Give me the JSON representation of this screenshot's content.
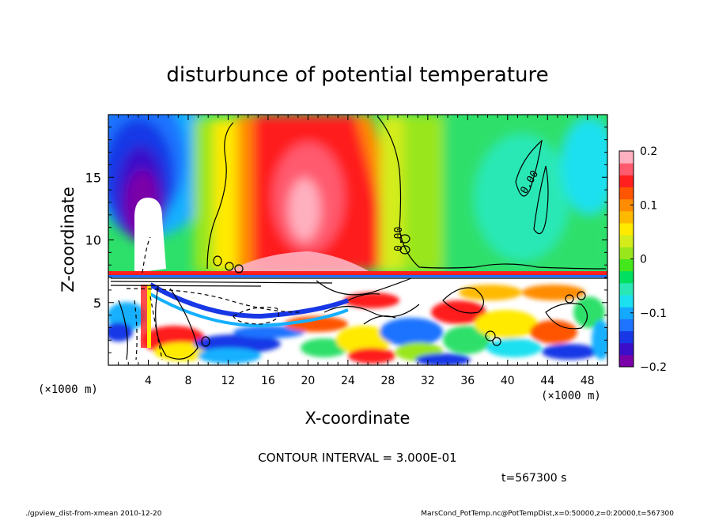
{
  "chart_data": {
    "type": "heatmap",
    "title": "disturbunce of potential temperature",
    "xlabel": "X-coordinate",
    "ylabel": "Z-coordinate",
    "x_unit": "(×1000 m)",
    "z_unit": "(×1000 m)",
    "xlim": [
      0,
      50
    ],
    "ylim": [
      0,
      20
    ],
    "x_ticks": [
      4,
      8,
      12,
      16,
      20,
      24,
      28,
      32,
      36,
      40,
      44,
      48
    ],
    "x_tick_labels": [
      "4",
      "8",
      "12",
      "16",
      "20",
      "24",
      "28",
      "32",
      "36",
      "40",
      "44",
      "48"
    ],
    "y_ticks": [
      5,
      10,
      15
    ],
    "y_tick_labels": [
      "5",
      "10",
      "15"
    ],
    "colorbar": {
      "range": [
        -0.2,
        0.2
      ],
      "ticks": [
        0.2,
        0.1,
        0,
        -0.1,
        -0.2
      ],
      "tick_labels": [
        "0.2",
        "0.1",
        "0",
        "−0.1",
        "−0.2"
      ],
      "colors": [
        "#7a00a8",
        "#3b0fc9",
        "#1838e6",
        "#1e73ff",
        "#14a8ff",
        "#1ce0f0",
        "#2ae8b6",
        "#00e060",
        "#44e61c",
        "#9ae61c",
        "#d4ec1a",
        "#ffea00",
        "#ffba00",
        "#ff8c00",
        "#ff5500",
        "#ff1f1f",
        "#ff5a6e",
        "#ffb0c0"
      ]
    },
    "contour_labels": [
      "0.00",
      "0.00"
    ],
    "contour_interval_text": "CONTOUR INTERVAL = 3.000E-01",
    "time_text": "t=567300 s",
    "footer_left": "./gpview_dist-from-xmean  2010-12-20",
    "footer_right": "MarsCond_PotTemp.nc@PotTempDist,x=0:50000,z=0:20000,t=567300"
  }
}
